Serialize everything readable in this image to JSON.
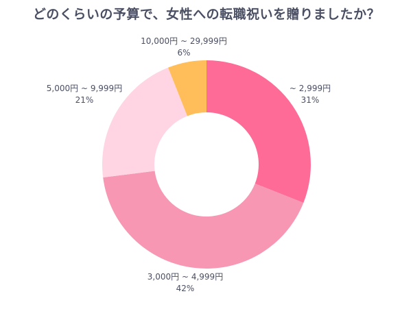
{
  "chart_data": {
    "type": "pie",
    "donut": true,
    "title": "どのくらいの予算で、女性への転職祝いを贈りましたか？",
    "categories": [
      "~ 2,999円",
      "3,000円 ~ 4,999円",
      "5,000円 ~ 9,999円",
      "10,000円 ~ 29,999円"
    ],
    "values": [
      31,
      42,
      21,
      6
    ],
    "value_labels": [
      "31%",
      "42%",
      "21%",
      "6%"
    ],
    "unit": "%",
    "colors": [
      "#FF6B97",
      "#F797B3",
      "#FFD5E4",
      "#FFBE5A"
    ],
    "legend": "none"
  }
}
